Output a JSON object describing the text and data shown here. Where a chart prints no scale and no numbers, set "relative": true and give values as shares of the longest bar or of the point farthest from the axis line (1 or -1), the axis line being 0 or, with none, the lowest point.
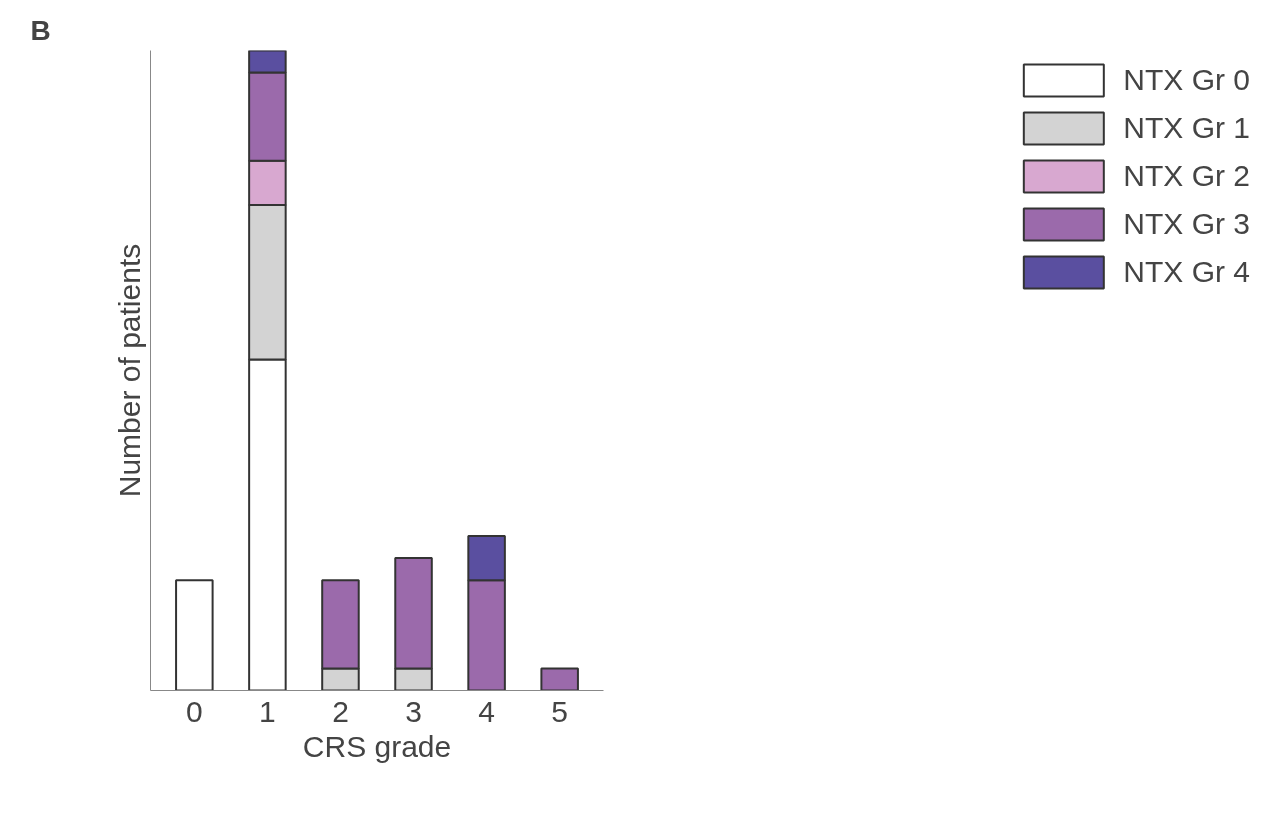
{
  "chart_data": {
    "type": "bar",
    "title": "B",
    "xlabel": "CRS grade",
    "ylabel": "Number of patients",
    "categories": [
      "0",
      "1",
      "2",
      "3",
      "4",
      "5"
    ],
    "stacked": true,
    "relative": true,
    "legend": "top right",
    "grid": false,
    "series": [
      {
        "name": "NTX Gr 0",
        "color": "#ffffff",
        "values": [
          0.1724,
          0.5172,
          0,
          0,
          0,
          0
        ]
      },
      {
        "name": "NTX Gr 1",
        "color": "#d3d3d3",
        "values": [
          0,
          0.2414,
          0.0345,
          0.0345,
          0,
          0
        ]
      },
      {
        "name": "NTX Gr 2",
        "color": "#d8a8d0",
        "values": [
          0,
          0.069,
          0,
          0,
          0,
          0
        ]
      },
      {
        "name": "NTX Gr 3",
        "color": "#9b6aab",
        "values": [
          0,
          0.1379,
          0.1379,
          0.1724,
          0.1724,
          0.0345
        ]
      },
      {
        "name": "NTX Gr 4",
        "color": "#5a4fa0",
        "values": [
          0,
          0.0345,
          0,
          0,
          0.069,
          0
        ]
      }
    ]
  }
}
